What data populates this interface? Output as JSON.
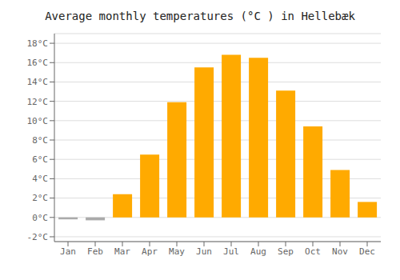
{
  "chart_data": {
    "type": "bar",
    "title": "Average monthly temperatures (°C ) in Hellebæk",
    "categories": [
      "Jan",
      "Feb",
      "Mar",
      "Apr",
      "May",
      "Jun",
      "Jul",
      "Aug",
      "Sep",
      "Oct",
      "Nov",
      "Dec"
    ],
    "values": [
      -0.2,
      -0.3,
      2.4,
      6.5,
      11.9,
      15.5,
      16.8,
      16.5,
      13.1,
      9.4,
      4.9,
      1.6
    ],
    "colors": [
      "#AAAAAA",
      "#AAAAAA",
      "#FFAA00",
      "#FFAA00",
      "#FFAA00",
      "#FFAA00",
      "#FFAA00",
      "#FFAA00",
      "#FFAA00",
      "#FFAA00",
      "#FFAA00",
      "#FFAA00"
    ],
    "ylim": [
      -2.5,
      19
    ],
    "yticks": [
      {
        "value": -2,
        "label": "-2°C"
      },
      {
        "value": 0,
        "label": "0°C"
      },
      {
        "value": 2,
        "label": "2°C"
      },
      {
        "value": 4,
        "label": "4°C"
      },
      {
        "value": 6,
        "label": "6°C"
      },
      {
        "value": 8,
        "label": "8°C"
      },
      {
        "value": 10,
        "label": "10°C"
      },
      {
        "value": 12,
        "label": "12°C"
      },
      {
        "value": 14,
        "label": "14°C"
      },
      {
        "value": 16,
        "label": "16°C"
      },
      {
        "value": 18,
        "label": "18°C"
      }
    ],
    "grid": true
  }
}
